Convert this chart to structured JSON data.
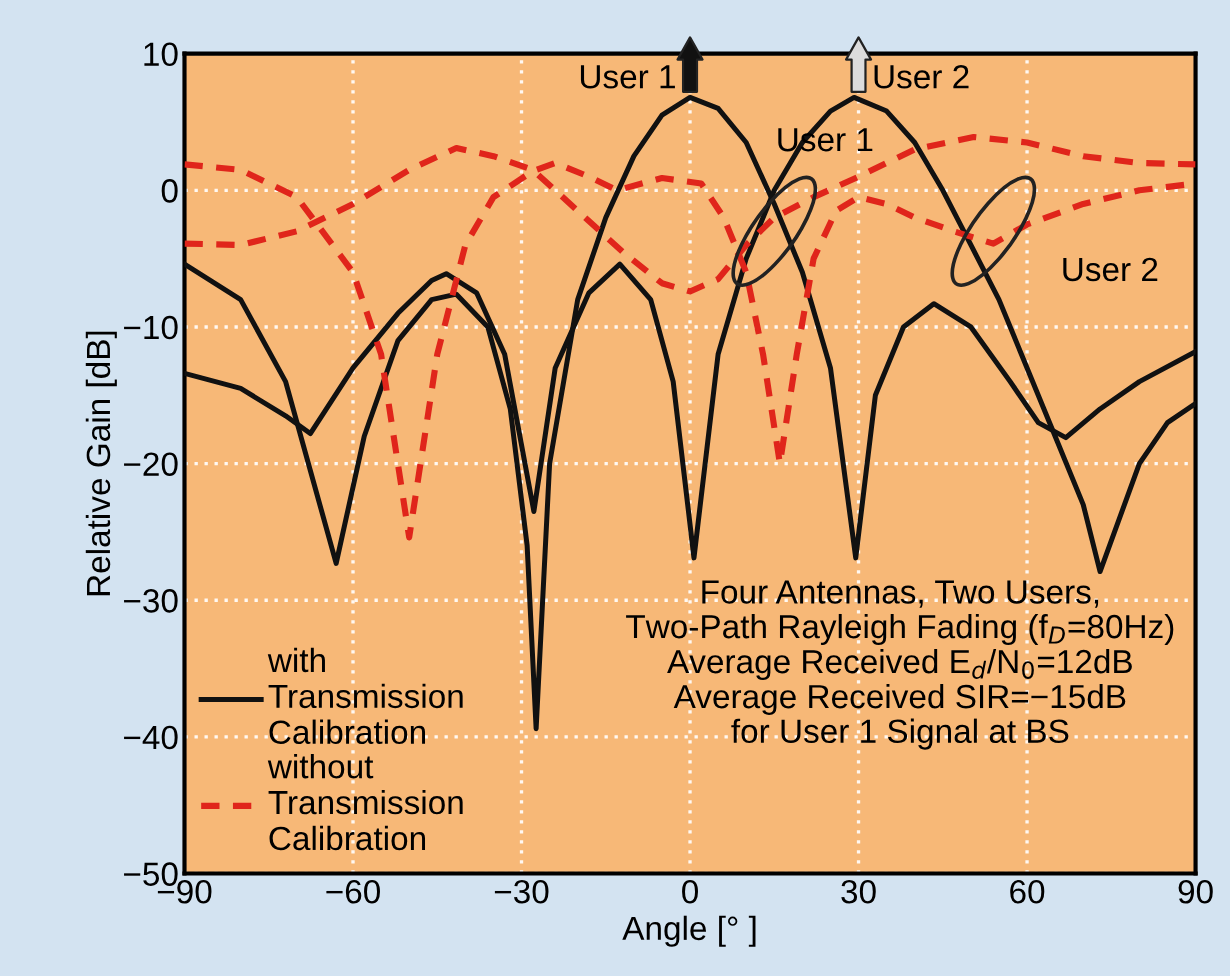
{
  "chart_data": {
    "type": "line",
    "xlabel": "Angle [° ]",
    "ylabel": "Relative Gain [dB]",
    "xlim": [
      -90,
      90
    ],
    "ylim": [
      -50,
      10
    ],
    "xticks": [
      -90,
      -60,
      -30,
      0,
      30,
      60,
      90
    ],
    "yticks": [
      -50,
      -40,
      -30,
      -20,
      -10,
      0,
      10
    ],
    "grid": true,
    "legend": "bottom left",
    "marker": "none",
    "series": [
      {
        "name": "with Transmission Calibration",
        "color": "#111111",
        "line_style": "solid",
        "x": [
          -90,
          -80,
          -72,
          -63,
          -58,
          -52,
          -46,
          -41.6,
          -36,
          -32,
          -29,
          -27.4,
          -25,
          -20,
          -15,
          -10,
          -5,
          0,
          5,
          10,
          15,
          20,
          25,
          29.5,
          33,
          38,
          43.4,
          50,
          57,
          62,
          66.9,
          73,
          80,
          90
        ],
        "values": [
          -5.4,
          -8,
          -14,
          -27.3,
          -18,
          -11,
          -8,
          -7.6,
          -10,
          -16,
          -26,
          -39.4,
          -20,
          -8,
          -2,
          2.5,
          5.5,
          6.8,
          6,
          3.5,
          -1,
          -6,
          -13,
          -26.9,
          -15,
          -10,
          -8.3,
          -10,
          -14,
          -17,
          -18.1,
          -16,
          -14,
          -11.8
        ]
      },
      {
        "color": "#111111",
        "line_style": "solid",
        "x": [
          -90,
          -80,
          -72,
          -67.6,
          -60,
          -52,
          -46,
          -43.4,
          -38,
          -33,
          -27.8,
          -24,
          -18,
          -12.5,
          -7,
          -3,
          0.7,
          5,
          10,
          15,
          20,
          25,
          29.2,
          35,
          40,
          45,
          50,
          55,
          60,
          65,
          70,
          73,
          80,
          85,
          90
        ],
        "values": [
          -13.4,
          -14.5,
          -16.5,
          -17.8,
          -13,
          -9,
          -6.6,
          -6.1,
          -7.5,
          -12,
          -23.5,
          -13,
          -7.5,
          -5.4,
          -8,
          -14,
          -26.9,
          -12,
          -5,
          0,
          3.5,
          5.8,
          6.8,
          5.8,
          3.5,
          0,
          -4,
          -8,
          -13,
          -18,
          -23,
          -27.9,
          -20,
          -17,
          -15.6
        ]
      },
      {
        "name": "without Transmission Calibration",
        "color": "#e0251b",
        "line_style": "dashed",
        "x": [
          -90,
          -80,
          -70,
          -60,
          -55,
          -50,
          -45,
          -40,
          -35,
          -28,
          -24,
          -18,
          -13,
          -5,
          2,
          6,
          10,
          13,
          16,
          19,
          22,
          26,
          30,
          35,
          40,
          47,
          54,
          60,
          70,
          80,
          90
        ],
        "values": [
          1.9,
          1.5,
          -0.5,
          -6,
          -12,
          -25.4,
          -12,
          -4,
          -0.5,
          1.4,
          2,
          1,
          0,
          0.9,
          0.5,
          -2,
          -6,
          -12,
          -20,
          -12,
          -5,
          -1.5,
          -0.5,
          -1,
          -2,
          -3,
          -3.9,
          -2.5,
          -1,
          0,
          0.5
        ]
      },
      {
        "color": "#e0251b",
        "line_style": "dashed",
        "x": [
          -90,
          -80,
          -70,
          -60,
          -50,
          -41.6,
          -35,
          -28,
          -20,
          -12,
          -5,
          0,
          5,
          10,
          15,
          22,
          30,
          40,
          50.5,
          60,
          70,
          80,
          90
        ],
        "values": [
          -3.9,
          -4,
          -3,
          -1,
          1.5,
          3.1,
          2.5,
          1.5,
          -1.5,
          -4.5,
          -6.8,
          -7.4,
          -6.5,
          -4,
          -2,
          -0.5,
          1,
          3,
          3.9,
          3.5,
          2.5,
          2,
          1.9
        ]
      }
    ],
    "annotations": [
      {
        "text": "User 1",
        "x": 0,
        "y": 6.8
      },
      {
        "text": "User 2",
        "x": 30,
        "y": 6.8
      },
      {
        "text": "User 1",
        "x": 15,
        "y": -3
      },
      {
        "text": "User 2",
        "x": 54,
        "y": -3
      },
      "Four Antennas, Two Users,\nTwo-Path Rayleigh Fading (f$_{D}$=80Hz)\nAverage Received E$_{d}$/N$_{0}$=12dB\nAverage Received SIR=−15dB\nfor User 1 Signal at BS"
    ]
  }
}
